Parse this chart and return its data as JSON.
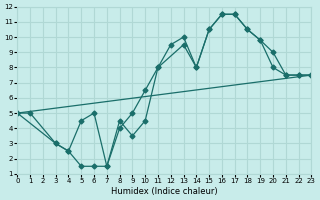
{
  "xlabel": "Humidex (Indice chaleur)",
  "bg_color": "#c8ecea",
  "grid_color": "#b0d8d5",
  "line_color": "#1a6e6a",
  "xlim": [
    0,
    23
  ],
  "ylim": [
    1,
    12
  ],
  "xticks": [
    0,
    1,
    2,
    3,
    4,
    5,
    6,
    7,
    8,
    9,
    10,
    11,
    12,
    13,
    14,
    15,
    16,
    17,
    18,
    19,
    20,
    21,
    22,
    23
  ],
  "yticks": [
    1,
    2,
    3,
    4,
    5,
    6,
    7,
    8,
    9,
    10,
    11,
    12
  ],
  "curves": [
    {
      "x": [
        0,
        1,
        3,
        4,
        5,
        6,
        7,
        8,
        9,
        10,
        11,
        13,
        14,
        15,
        16,
        17,
        18,
        19,
        20,
        21,
        22,
        23
      ],
      "y": [
        5,
        5,
        3,
        2.5,
        1.5,
        1.5,
        1.5,
        4.5,
        3.5,
        4.5,
        8,
        9.5,
        8,
        10.5,
        11.5,
        11.5,
        10.5,
        9.8,
        9,
        7.5,
        7.5,
        7.5
      ]
    },
    {
      "x": [
        0,
        3,
        4,
        5,
        6,
        7,
        8,
        9,
        10,
        11,
        12,
        13,
        14,
        15,
        16,
        17,
        18,
        19,
        20,
        21,
        22,
        23
      ],
      "y": [
        5,
        3,
        2.5,
        4.5,
        5,
        1.5,
        4,
        5,
        6.5,
        8,
        9.5,
        10,
        8,
        10.5,
        11.5,
        11.5,
        10.5,
        9.8,
        8,
        7.5,
        7.5,
        7.5
      ]
    },
    {
      "x": [
        0,
        23
      ],
      "y": [
        5,
        7.5
      ]
    }
  ]
}
